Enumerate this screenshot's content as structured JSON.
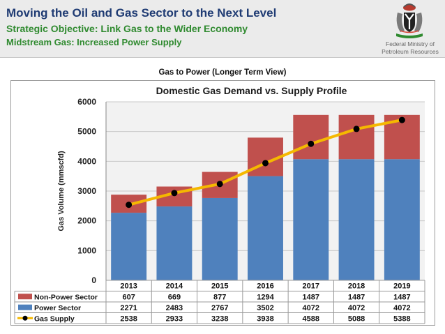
{
  "header": {
    "title": "Moving the Oil and Gas Sector to the Next Level",
    "subtitle1": "Strategic Objective: Link Gas to the Wider Economy",
    "subtitle2": "Midstream Gas: Increased Power Supply",
    "ministry_line1": "Federal Ministry of",
    "ministry_line2": "Petroleum Resources"
  },
  "section_title": "Gas to Power (Longer Term View)",
  "colors": {
    "title_blue": "#1f3b73",
    "subtitle_green": "#2f8a2f",
    "non_power": "#c0504d",
    "power": "#4f81bd",
    "supply_line": "#f5b800",
    "supply_marker": "#000000",
    "plot_bg": "#f2f2f2"
  },
  "chart_data": {
    "type": "bar",
    "stacked": true,
    "title": "Domestic Gas Demand vs. Supply Profile",
    "xlabel": "",
    "ylabel": "Gas Volume (mmscfd)",
    "ylim": [
      0,
      6000
    ],
    "yticks": [
      0,
      1000,
      2000,
      3000,
      4000,
      5000,
      6000
    ],
    "categories": [
      "2013",
      "2014",
      "2015",
      "2016",
      "2017",
      "2018",
      "2019"
    ],
    "series": [
      {
        "name": "Non-Power Sector",
        "kind": "bar",
        "values": [
          607,
          669,
          877,
          1294,
          1487,
          1487,
          1487
        ]
      },
      {
        "name": "Power Sector",
        "kind": "bar",
        "values": [
          2271,
          2483,
          2767,
          3502,
          4072,
          4072,
          4072
        ]
      },
      {
        "name": "Gas Supply",
        "kind": "line",
        "values": [
          2538,
          2933,
          3238,
          3938,
          4588,
          5088,
          5388
        ]
      }
    ],
    "data_table": true
  }
}
